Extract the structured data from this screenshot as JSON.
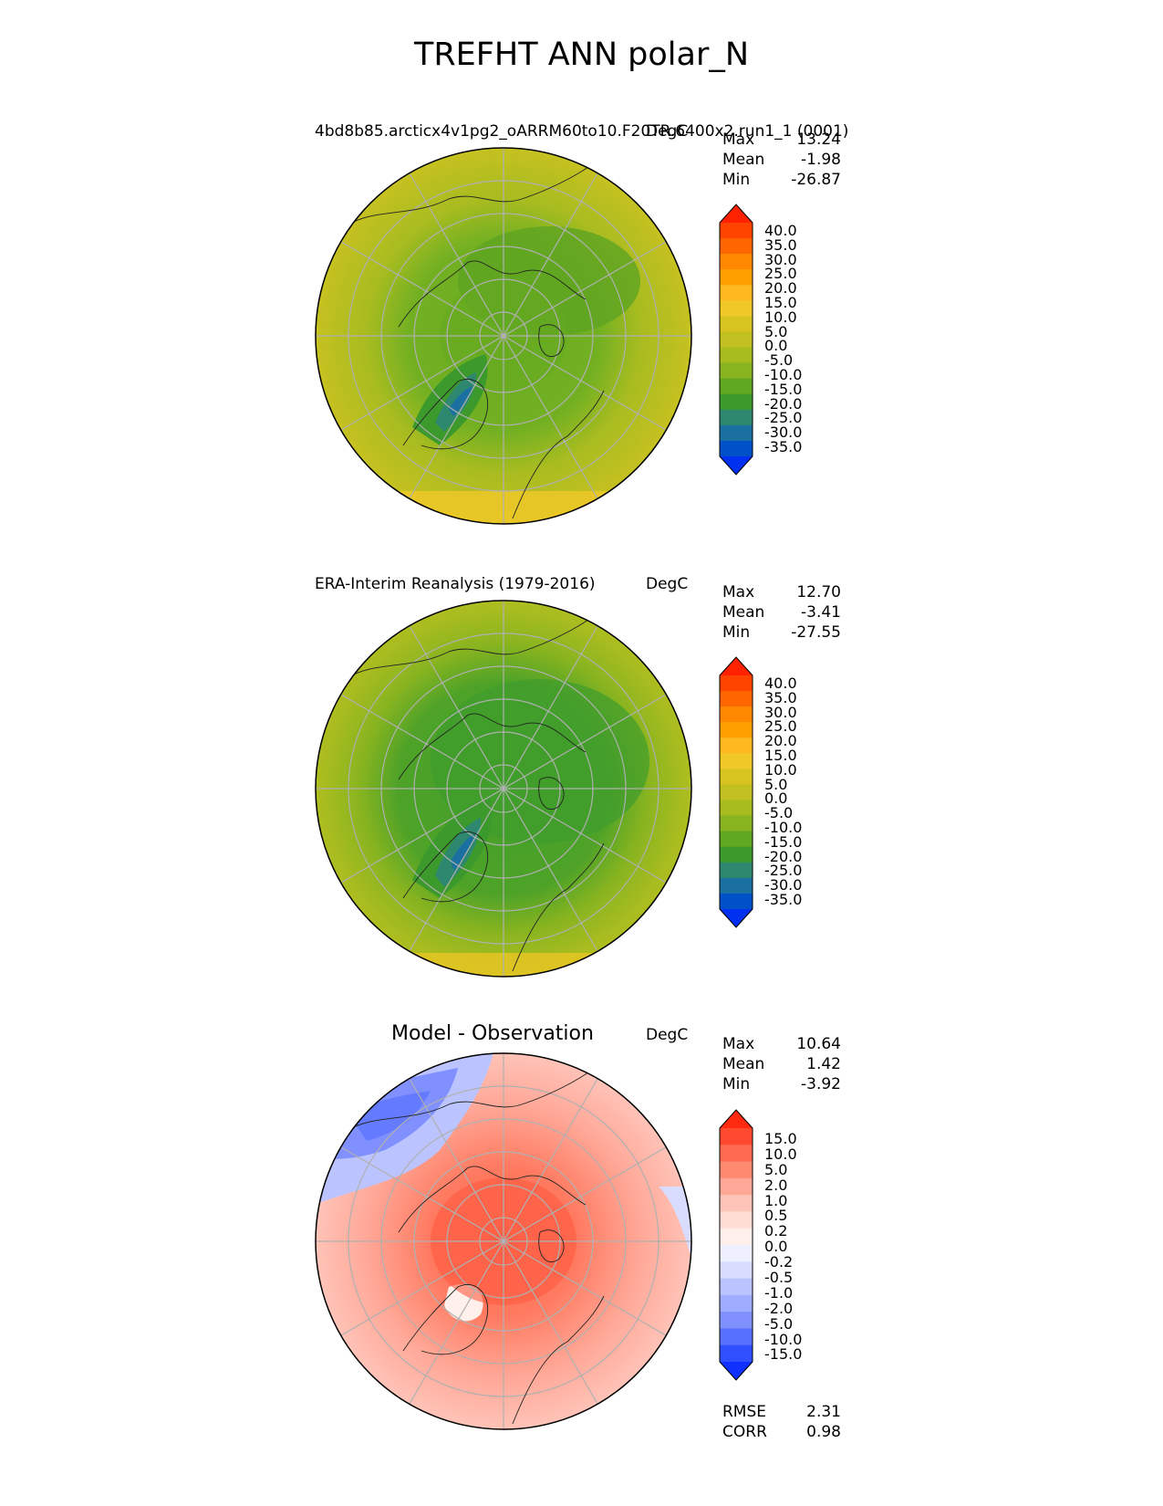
{
  "title": "TREFHT ANN polar_N",
  "panels": [
    {
      "label": "4bd8b85.arcticx4v1pg2_oARRM60to10.F20TR.6400x2.run1_1 (0001)",
      "units": "DegC",
      "stats": {
        "max_label": "Max",
        "max": "13.24",
        "mean_label": "Mean",
        "mean": "-1.98",
        "min_label": "Min",
        "min": "-26.87"
      },
      "colorbar": {
        "ticks": [
          "40.0",
          "35.0",
          "30.0",
          "25.0",
          "20.0",
          "15.0",
          "10.0",
          "5.0",
          "0.0",
          "-5.0",
          "-10.0",
          "-15.0",
          "-20.0",
          "-25.0",
          "-30.0",
          "-35.0"
        ],
        "colors": [
          "#ff2200",
          "#ff4400",
          "#ff6600",
          "#ff8800",
          "#ffa000",
          "#ffb820",
          "#f0c828",
          "#d8c420",
          "#c0c020",
          "#a8bc20",
          "#88b420",
          "#60a820",
          "#3c9a2c",
          "#2e8870",
          "#1a70a0",
          "#0050c8",
          "#0030f0"
        ]
      }
    },
    {
      "label": "ERA-Interim Reanalysis (1979-2016)",
      "units": "DegC",
      "stats": {
        "max_label": "Max",
        "max": "12.70",
        "mean_label": "Mean",
        "mean": "-3.41",
        "min_label": "Min",
        "min": "-27.55"
      },
      "colorbar": {
        "ticks": [
          "40.0",
          "35.0",
          "30.0",
          "25.0",
          "20.0",
          "15.0",
          "10.0",
          "5.0",
          "0.0",
          "-5.0",
          "-10.0",
          "-15.0",
          "-20.0",
          "-25.0",
          "-30.0",
          "-35.0"
        ],
        "colors": [
          "#ff2200",
          "#ff4400",
          "#ff6600",
          "#ff8800",
          "#ffa000",
          "#ffb820",
          "#f0c828",
          "#d8c420",
          "#c0c020",
          "#a8bc20",
          "#88b420",
          "#60a820",
          "#3c9a2c",
          "#2e8870",
          "#1a70a0",
          "#0050c8",
          "#0030f0"
        ]
      }
    },
    {
      "label": "Model - Observation",
      "units": "DegC",
      "stats": {
        "max_label": "Max",
        "max": "10.64",
        "mean_label": "Mean",
        "mean": "1.42",
        "min_label": "Min",
        "min": "-3.92"
      },
      "colorbar": {
        "ticks": [
          "15.0",
          "10.0",
          "5.0",
          "2.0",
          "1.0",
          "0.5",
          "0.2",
          "0.0",
          "-0.2",
          "-0.5",
          "-1.0",
          "-2.0",
          "-5.0",
          "-10.0",
          "-15.0"
        ],
        "colors": [
          "#ff2a10",
          "#ff4a30",
          "#ff6a50",
          "#ff8a70",
          "#ffa898",
          "#ffc4b8",
          "#ffdcd4",
          "#fff0ec",
          "#eef0ff",
          "#d8dcff",
          "#bcc4ff",
          "#a0acff",
          "#8090ff",
          "#5870ff",
          "#3050ff",
          "#1030ff"
        ]
      }
    }
  ],
  "bottom_stats": {
    "rmse_label": "RMSE",
    "rmse": "2.31",
    "corr_label": "CORR",
    "corr": "0.98"
  }
}
